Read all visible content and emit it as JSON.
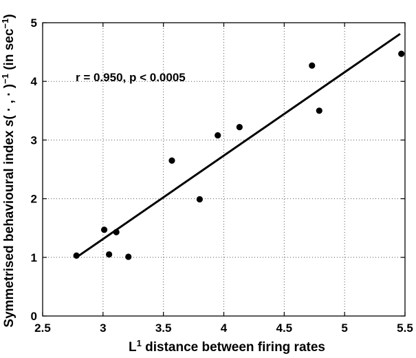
{
  "chart_data": {
    "type": "scatter",
    "title": "",
    "xlabel": {
      "prefix": "L",
      "sup": "1",
      "suffix": " distance between firing rates"
    },
    "ylabel": {
      "prefix": "Symmetrised behavioural index  ",
      "fn": "s",
      "args": "( · , · )",
      "sup1": "−1",
      "mid": "  (in sec",
      "sup2": "−1",
      "end": ")"
    },
    "xlim": [
      2.5,
      5.5
    ],
    "ylim": [
      0,
      5
    ],
    "xticks": [
      2.5,
      3,
      3.5,
      4,
      4.5,
      5,
      5.5
    ],
    "xtick_labels": [
      "2.5",
      "3",
      "3.5",
      "4",
      "4.5",
      "5",
      "5.5"
    ],
    "yticks": [
      0,
      1,
      2,
      3,
      4,
      5
    ],
    "ytick_labels": [
      "0",
      "1",
      "2",
      "3",
      "4",
      "5"
    ],
    "grid": true,
    "annotation": "r = 0.950, p < 0.0005",
    "points": [
      {
        "x": 2.78,
        "y": 1.03
      },
      {
        "x": 3.01,
        "y": 1.47
      },
      {
        "x": 3.05,
        "y": 1.05
      },
      {
        "x": 3.11,
        "y": 1.43
      },
      {
        "x": 3.21,
        "y": 1.01
      },
      {
        "x": 3.57,
        "y": 2.65
      },
      {
        "x": 3.8,
        "y": 1.99
      },
      {
        "x": 3.95,
        "y": 3.08
      },
      {
        "x": 4.13,
        "y": 3.22
      },
      {
        "x": 4.73,
        "y": 4.27
      },
      {
        "x": 4.79,
        "y": 3.5
      },
      {
        "x": 5.47,
        "y": 4.47
      }
    ],
    "fit_line": {
      "x": [
        2.78,
        5.46
      ],
      "y": [
        1.0,
        4.81
      ]
    }
  }
}
